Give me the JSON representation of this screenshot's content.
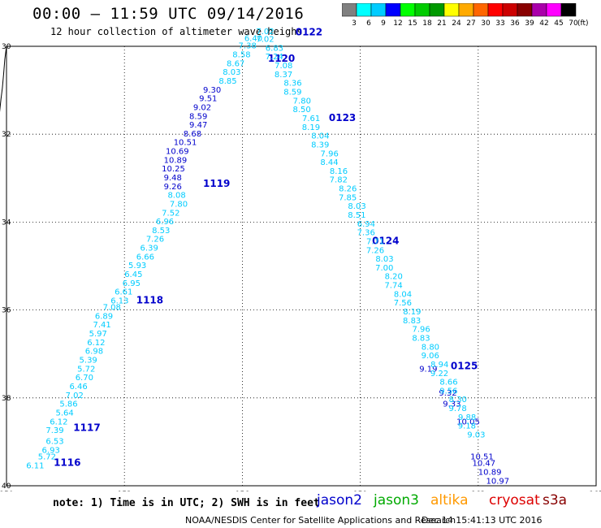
{
  "header": {
    "title": "00:00 – 11:59 UTC 09/14/2016",
    "subtitle": "12 hour collection of altimeter wave heighs"
  },
  "colorbar": {
    "unit": "(ft)",
    "labels": [
      "3",
      "6",
      "9",
      "12",
      "15",
      "18",
      "21",
      "24",
      "27",
      "30",
      "33",
      "36",
      "39",
      "42",
      "45",
      "70"
    ],
    "colors": [
      "#808080",
      "#00ffff",
      "#00ccff",
      "#0000ff",
      "#00ff00",
      "#00cc00",
      "#009900",
      "#ffff00",
      "#ffaa00",
      "#ff6600",
      "#ff0000",
      "#cc0000",
      "#880000",
      "#aa00aa",
      "#ff00ff",
      "#000000"
    ]
  },
  "axes": {
    "lon_ticks": [
      "150",
      "153",
      "156",
      "159",
      "162",
      "165"
    ],
    "lat_ticks": [
      "30",
      "32",
      "34",
      "36",
      "38",
      "40"
    ]
  },
  "tracks": [
    {
      "pass": "1116",
      "pass_lon": 151.2,
      "pass_lat": 39.55,
      "color": "#0000cc",
      "points": [
        {
          "v": "6.11",
          "lon": 150.5,
          "lat": 39.6,
          "c": "#00ccff"
        },
        {
          "v": "5.72",
          "lon": 150.8,
          "lat": 39.4,
          "c": "#00ccff"
        },
        {
          "v": "6.93",
          "lon": 150.9,
          "lat": 39.25,
          "c": "#00ccff"
        },
        {
          "v": "6.53",
          "lon": 151.0,
          "lat": 39.05,
          "c": "#00ccff"
        },
        {
          "v": "7.39",
          "lon": 151.0,
          "lat": 38.8,
          "c": "#00ccff"
        },
        {
          "v": "6.12",
          "lon": 151.1,
          "lat": 38.6,
          "c": "#00ccff"
        },
        {
          "v": "5.64",
          "lon": 151.25,
          "lat": 38.4,
          "c": "#00ccff"
        },
        {
          "v": "5.86",
          "lon": 151.35,
          "lat": 38.2,
          "c": "#00ccff"
        },
        {
          "v": "7.02",
          "lon": 151.5,
          "lat": 38.0,
          "c": "#00ccff"
        },
        {
          "v": "6.46",
          "lon": 151.6,
          "lat": 37.8,
          "c": "#00ccff"
        },
        {
          "v": "6.70",
          "lon": 151.75,
          "lat": 37.6,
          "c": "#00ccff"
        },
        {
          "v": "5.72",
          "lon": 151.8,
          "lat": 37.4,
          "c": "#00ccff"
        },
        {
          "v": "5.39",
          "lon": 151.85,
          "lat": 37.2,
          "c": "#00ccff"
        },
        {
          "v": "6.98",
          "lon": 152.0,
          "lat": 37.0,
          "c": "#00ccff"
        },
        {
          "v": "6.12",
          "lon": 152.05,
          "lat": 36.8,
          "c": "#00ccff"
        },
        {
          "v": "5.97",
          "lon": 152.1,
          "lat": 36.6,
          "c": "#00ccff"
        },
        {
          "v": "7.41",
          "lon": 152.2,
          "lat": 36.4,
          "c": "#00ccff"
        },
        {
          "v": "6.89",
          "lon": 152.25,
          "lat": 36.2,
          "c": "#00ccff"
        },
        {
          "v": "7.08",
          "lon": 152.45,
          "lat": 36.0,
          "c": "#00ccff"
        }
      ]
    },
    {
      "pass": "1117",
      "pass_lon": 151.7,
      "pass_lat": 38.75,
      "color": "#0000cc",
      "points": []
    },
    {
      "pass": "1118",
      "pass_lon": 153.3,
      "pass_lat": 35.85,
      "color": "#0000cc",
      "points": [
        {
          "v": "6.13",
          "lon": 152.65,
          "lat": 35.85,
          "c": "#00ccff"
        },
        {
          "v": "6.61",
          "lon": 152.75,
          "lat": 35.65,
          "c": "#00ccff"
        },
        {
          "v": "6.95",
          "lon": 152.95,
          "lat": 35.45,
          "c": "#00ccff"
        },
        {
          "v": "6.45",
          "lon": 153.0,
          "lat": 35.25,
          "c": "#00ccff"
        },
        {
          "v": "5.93",
          "lon": 153.1,
          "lat": 35.05,
          "c": "#00ccff"
        },
        {
          "v": "6.66",
          "lon": 153.3,
          "lat": 34.85,
          "c": "#00ccff"
        },
        {
          "v": "6.39",
          "lon": 153.4,
          "lat": 34.65,
          "c": "#00ccff"
        },
        {
          "v": "7.26",
          "lon": 153.55,
          "lat": 34.45,
          "c": "#00ccff"
        },
        {
          "v": "8.53",
          "lon": 153.7,
          "lat": 34.25,
          "c": "#00ccff"
        },
        {
          "v": "6.96",
          "lon": 153.8,
          "lat": 34.05,
          "c": "#00ccff"
        },
        {
          "v": "7.52",
          "lon": 153.95,
          "lat": 33.85,
          "c": "#00ccff"
        },
        {
          "v": "7.80",
          "lon": 154.15,
          "lat": 33.65,
          "c": "#00ccff"
        },
        {
          "v": "8.08",
          "lon": 154.1,
          "lat": 33.45,
          "c": "#00ccff"
        }
      ]
    },
    {
      "pass": "1119",
      "pass_lon": 155.0,
      "pass_lat": 33.2,
      "color": "#0000cc",
      "points": [
        {
          "v": "9.26",
          "lon": 154.0,
          "lat": 33.25,
          "c": "#0000cc"
        },
        {
          "v": "9.48",
          "lon": 154.0,
          "lat": 33.05,
          "c": "#0000cc"
        },
        {
          "v": "10.25",
          "lon": 153.95,
          "lat": 32.85,
          "c": "#0000cc"
        },
        {
          "v": "10.89",
          "lon": 154.0,
          "lat": 32.65,
          "c": "#0000cc"
        },
        {
          "v": "10.69",
          "lon": 154.05,
          "lat": 32.45,
          "c": "#0000cc"
        },
        {
          "v": "10.51",
          "lon": 154.25,
          "lat": 32.25,
          "c": "#0000cc"
        },
        {
          "v": "8.68",
          "lon": 154.5,
          "lat": 32.05,
          "c": "#0000cc"
        },
        {
          "v": "9.47",
          "lon": 154.65,
          "lat": 31.85,
          "c": "#0000cc"
        },
        {
          "v": "8.59",
          "lon": 154.65,
          "lat": 31.65,
          "c": "#0000cc"
        },
        {
          "v": "9.02",
          "lon": 154.75,
          "lat": 31.45,
          "c": "#0000cc"
        },
        {
          "v": "9.51",
          "lon": 154.9,
          "lat": 31.25,
          "c": "#0000cc"
        },
        {
          "v": "9.30",
          "lon": 155.0,
          "lat": 31.05,
          "c": "#0000cc"
        }
      ]
    },
    {
      "pass": "1120",
      "pass_lon": 156.65,
      "pass_lat": 30.35,
      "color": "#0000cc",
      "points": [
        {
          "v": "8.85",
          "lon": 155.4,
          "lat": 30.85,
          "c": "#00ccff"
        },
        {
          "v": "8.03",
          "lon": 155.5,
          "lat": 30.65,
          "c": "#00ccff"
        },
        {
          "v": "8.67",
          "lon": 155.6,
          "lat": 30.45,
          "c": "#00ccff"
        },
        {
          "v": "8.58",
          "lon": 155.75,
          "lat": 30.25,
          "c": "#00ccff"
        },
        {
          "v": "7.38",
          "lon": 155.9,
          "lat": 30.05,
          "c": "#00ccff"
        },
        {
          "v": "6.40",
          "lon": 156.05,
          "lat": 29.88,
          "c": "#00ccff"
        },
        {
          "v": "7.02",
          "lon": 156.35,
          "lat": 29.72,
          "c": "#00ccff"
        }
      ]
    },
    {
      "pass": "0122",
      "pass_lon": 157.35,
      "pass_lat": 29.75,
      "color": "#0000cc",
      "points": []
    },
    {
      "pass": "0123",
      "pass_lon": 158.2,
      "pass_lat": 31.7,
      "color": "#0000cc",
      "points": []
    },
    {
      "pass": "0124",
      "pass_lon": 159.3,
      "pass_lat": 34.5,
      "color": "#0000cc",
      "points": []
    },
    {
      "pass": "0125",
      "pass_lon": 161.3,
      "pass_lat": 37.35,
      "color": "#0000cc",
      "points": [
        {
          "v": "9.19",
          "lon": 160.5,
          "lat": 37.4,
          "c": "#0000cc"
        },
        {
          "v": "9.32",
          "lon": 161.0,
          "lat": 37.95,
          "c": "#0000cc"
        },
        {
          "v": "9.33",
          "lon": 161.1,
          "lat": 38.2,
          "c": "#0000cc"
        },
        {
          "v": "10.05",
          "lon": 161.45,
          "lat": 38.6,
          "c": "#0000cc"
        },
        {
          "v": "10.51",
          "lon": 161.8,
          "lat": 39.4,
          "c": "#0000cc"
        },
        {
          "v": "10.47",
          "lon": 161.85,
          "lat": 39.55,
          "c": "#0000cc"
        },
        {
          "v": "10.89",
          "lon": 162.0,
          "lat": 39.75,
          "c": "#0000cc"
        },
        {
          "v": "10.97",
          "lon": 162.2,
          "lat": 39.95,
          "c": "#0000cc"
        }
      ]
    }
  ],
  "descending_band_values": [
    "7.02",
    "6.83",
    "7.24",
    "7.08",
    "8.37",
    "8.36",
    "8.59",
    "7.80",
    "8.50",
    "7.61",
    "8.19",
    "8.04",
    "8.39",
    "7.96",
    "8.44",
    "8.16",
    "7.82",
    "8.26",
    "7.85",
    "8.03",
    "8.51",
    "6.94",
    "7.36",
    "7.71",
    "7.26",
    "8.03",
    "7.00",
    "8.20",
    "7.74",
    "8.04",
    "7.56",
    "8.19",
    "8.83",
    "7.96",
    "8.83",
    "8.80",
    "9.06",
    "8.94",
    "9.22",
    "8.66",
    "9.56",
    "8.30",
    "9.78",
    "9.88",
    "9.18",
    "9.03"
  ],
  "footer": {
    "note": "note: 1) Time is in UTC; 2) SWH is in feet",
    "satellites": [
      "jason2",
      "jason3",
      "altika",
      "cryosat",
      "s3a"
    ],
    "credit": "NOAA/NESDIS Center for Satellite Applications and Research",
    "timestamp": "Dec 14 15:41:13 UTC 2016"
  }
}
